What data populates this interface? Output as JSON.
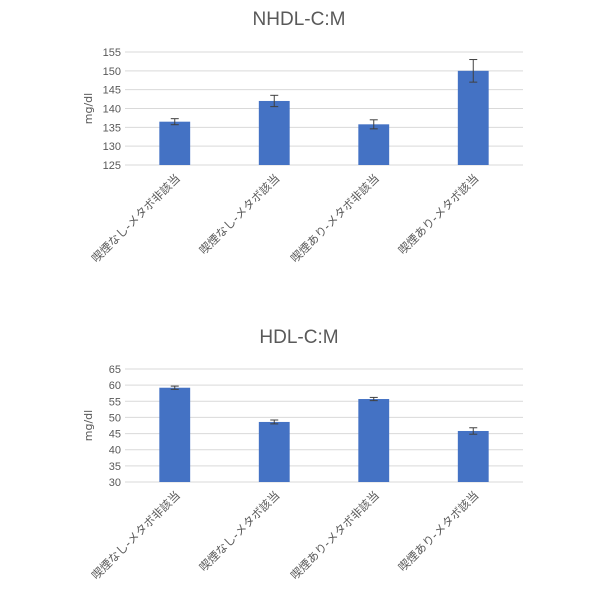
{
  "chart_data": [
    {
      "type": "bar",
      "title": "NHDL-C:M",
      "ylabel": "mg/dl",
      "xlabel": "",
      "categories": [
        "喫煙なし-メタボ非該当",
        "喫煙なし-メタボ該当",
        "喫煙あり-メタボ非該当",
        "喫煙あり-メタボ該当"
      ],
      "values": [
        136.5,
        142.0,
        135.8,
        150.0
      ],
      "errors": [
        0.8,
        1.5,
        1.2,
        3.0
      ],
      "ylim": [
        125,
        155
      ],
      "yticks": [
        125,
        130,
        135,
        140,
        145,
        150,
        155
      ],
      "grid": true,
      "bar_color": "#4472c4"
    },
    {
      "type": "bar",
      "title": "HDL-C:M",
      "ylabel": "mg/dl",
      "xlabel": "",
      "categories": [
        "喫煙なし-メタボ非該当",
        "喫煙なし-メタボ該当",
        "喫煙あり-メタボ非該当",
        "喫煙あり-メタボ該当"
      ],
      "values": [
        59.2,
        48.6,
        55.7,
        45.8
      ],
      "errors": [
        0.5,
        0.6,
        0.5,
        1.0
      ],
      "ylim": [
        30,
        65
      ],
      "yticks": [
        30,
        35,
        40,
        45,
        50,
        55,
        60,
        65
      ],
      "grid": true,
      "bar_color": "#4472c4"
    }
  ]
}
